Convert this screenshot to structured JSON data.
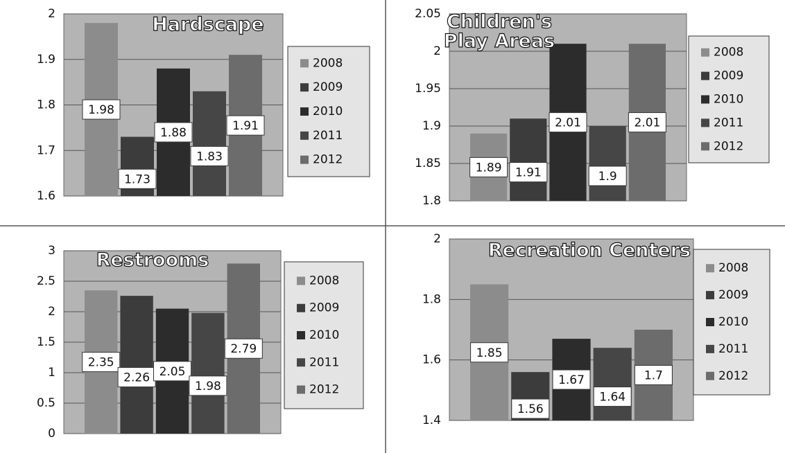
{
  "chart_data": [
    {
      "type": "bar",
      "title": "Hardscape",
      "series": [
        {
          "name": "2008",
          "color": "#8c8c8c",
          "values": [
            1.98
          ]
        },
        {
          "name": "2009",
          "color": "#3c3c3c",
          "values": [
            1.73
          ]
        },
        {
          "name": "2010",
          "color": "#2c2c2c",
          "values": [
            1.88
          ]
        },
        {
          "name": "2011",
          "color": "#464646",
          "values": [
            1.83
          ]
        },
        {
          "name": "2012",
          "color": "#6c6c6c",
          "values": [
            1.91
          ]
        }
      ],
      "ylim": [
        1.6,
        2
      ],
      "yticks": [
        1.6,
        1.7,
        1.8,
        1.9,
        2
      ],
      "grid": true
    },
    {
      "type": "bar",
      "title": "Children's Play Areas",
      "series": [
        {
          "name": "2008",
          "color": "#8c8c8c",
          "values": [
            1.89
          ]
        },
        {
          "name": "2009",
          "color": "#3c3c3c",
          "values": [
            1.91
          ]
        },
        {
          "name": "2010",
          "color": "#2c2c2c",
          "values": [
            2.01
          ]
        },
        {
          "name": "2011",
          "color": "#464646",
          "values": [
            1.9
          ]
        },
        {
          "name": "2012",
          "color": "#6c6c6c",
          "values": [
            2.01
          ]
        }
      ],
      "ylim": [
        1.8,
        2.05
      ],
      "yticks": [
        1.8,
        1.85,
        1.9,
        1.95,
        2,
        2.05
      ],
      "grid": true
    },
    {
      "type": "bar",
      "title": "Restrooms",
      "series": [
        {
          "name": "2008",
          "color": "#8c8c8c",
          "values": [
            2.35
          ]
        },
        {
          "name": "2009",
          "color": "#3c3c3c",
          "values": [
            2.26
          ]
        },
        {
          "name": "2010",
          "color": "#2c2c2c",
          "values": [
            2.05
          ]
        },
        {
          "name": "2011",
          "color": "#464646",
          "values": [
            1.98
          ]
        },
        {
          "name": "2012",
          "color": "#6c6c6c",
          "values": [
            2.79
          ]
        }
      ],
      "ylim": [
        0,
        3
      ],
      "yticks": [
        0,
        0.5,
        1,
        1.5,
        2,
        2.5,
        3
      ],
      "grid": true
    },
    {
      "type": "bar",
      "title": "Recreation Centers",
      "series": [
        {
          "name": "2008",
          "color": "#8c8c8c",
          "values": [
            1.85
          ]
        },
        {
          "name": "2009",
          "color": "#3c3c3c",
          "values": [
            1.56
          ]
        },
        {
          "name": "2010",
          "color": "#2c2c2c",
          "values": [
            1.67
          ]
        },
        {
          "name": "2011",
          "color": "#464646",
          "values": [
            1.64
          ]
        },
        {
          "name": "2012",
          "color": "#6c6c6c",
          "values": [
            1.7
          ]
        }
      ],
      "ylim": [
        1.4,
        2
      ],
      "yticks": [
        1.4,
        1.6,
        1.8,
        2
      ],
      "grid": true
    }
  ]
}
